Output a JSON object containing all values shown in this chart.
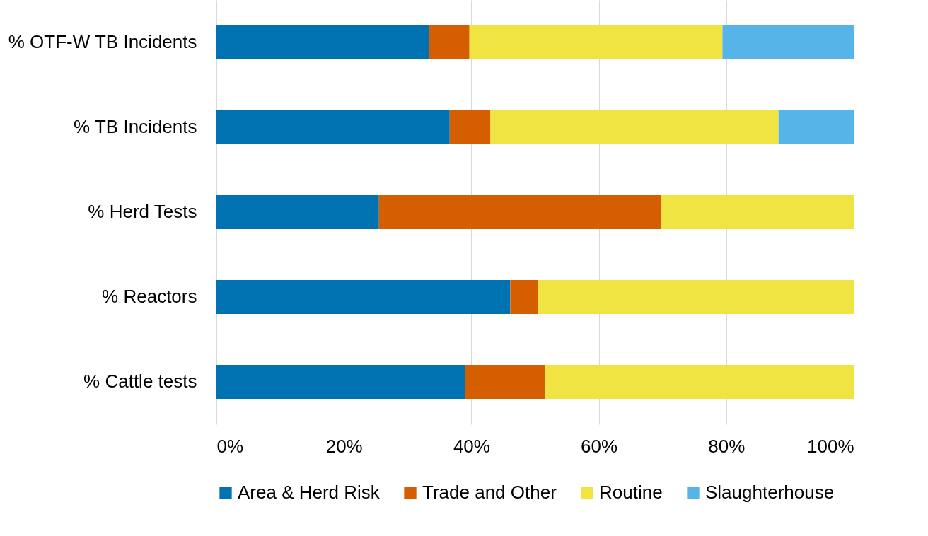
{
  "chart_data": {
    "type": "bar",
    "orientation": "horizontal",
    "stacked": true,
    "categories": [
      "% OTF-W TB Incidents",
      "% TB Incidents",
      "% Herd Tests",
      "% Reactors",
      "% Cattle tests"
    ],
    "series": [
      {
        "name": "Area & Herd Risk",
        "color": "#0072b2",
        "values": [
          33.3,
          36.6,
          25.5,
          46.1,
          39.0
        ]
      },
      {
        "name": "Trade and Other",
        "color": "#d55e00",
        "values": [
          6.4,
          6.4,
          44.3,
          4.4,
          12.5
        ]
      },
      {
        "name": "Routine",
        "color": "#f0e442",
        "values": [
          39.7,
          45.2,
          30.2,
          49.5,
          48.5
        ]
      },
      {
        "name": "Slaughterhouse",
        "color": "#56b4e9",
        "values": [
          20.6,
          11.8,
          null,
          null,
          null
        ]
      }
    ],
    "xlim": [
      0,
      100
    ],
    "xticks": [
      {
        "value": 0,
        "label": "0%"
      },
      {
        "value": 20,
        "label": "20%"
      },
      {
        "value": 40,
        "label": "40%"
      },
      {
        "value": 60,
        "label": "60%"
      },
      {
        "value": 80,
        "label": "80%"
      },
      {
        "value": 100,
        "label": "100%"
      }
    ],
    "grid": "x",
    "legend": "bottom"
  }
}
